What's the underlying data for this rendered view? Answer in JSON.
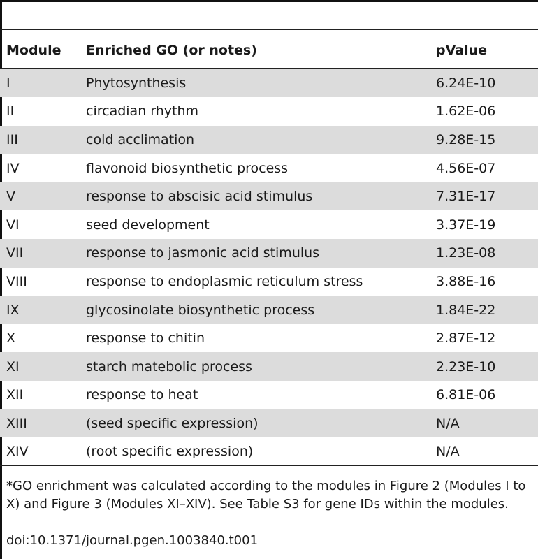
{
  "table": {
    "headers": [
      "Module",
      "Enriched GO (or notes)",
      "pValue"
    ],
    "rows": [
      [
        "I",
        "Phytosynthesis",
        "6.24E-10"
      ],
      [
        "II",
        "circadian rhythm",
        "1.62E-06"
      ],
      [
        "III",
        "cold acclimation",
        "9.28E-15"
      ],
      [
        "IV",
        "flavonoid biosynthetic process",
        "4.56E-07"
      ],
      [
        "V",
        "response to abscisic acid stimulus",
        "7.31E-17"
      ],
      [
        "VI",
        "seed development",
        "3.37E-19"
      ],
      [
        "VII",
        "response to jasmonic acid stimulus",
        "1.23E-08"
      ],
      [
        "VIII",
        "response to endoplasmic reticulum stress",
        "3.88E-16"
      ],
      [
        "IX",
        "glycosinolate biosynthetic process",
        "1.84E-22"
      ],
      [
        "X",
        "response to chitin",
        "2.87E-12"
      ],
      [
        "XI",
        "starch matebolic process",
        "2.23E-10"
      ],
      [
        "XII",
        "response to heat",
        "6.81E-06"
      ],
      [
        "XIII",
        "(seed specific expression)",
        "N/A"
      ],
      [
        "XIV",
        "(root specific expression)",
        "N/A"
      ]
    ]
  },
  "footnote": "*GO enrichment was calculated according to the modules in Figure 2 (Modules I to X) and Figure 3 (Modules XI–XIV). See Table S3 for gene IDs within the modules.",
  "doi": "doi:10.1371/journal.pgen.1003840.t001"
}
